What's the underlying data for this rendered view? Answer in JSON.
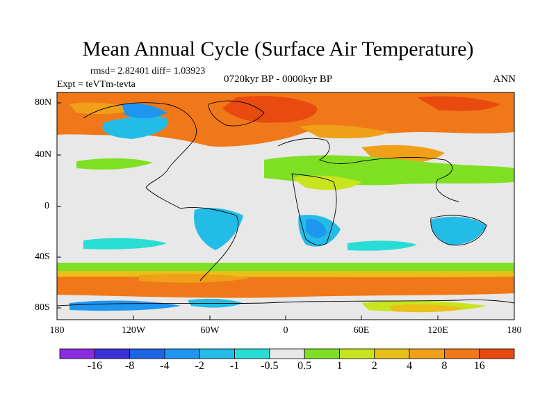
{
  "title": "Mean Annual Cycle (Surface Air Temperature)",
  "stats": "rmsd= 2.82401 diff= 1.03923",
  "experiment": "Expt = teVTm-tevta",
  "period": "0720kyr BP - 0000kyr BP",
  "season": "ANN",
  "y_ticks": [
    "80N",
    "40N",
    "0",
    "40S",
    "80S"
  ],
  "x_ticks": [
    "180",
    "120W",
    "60W",
    "0",
    "60E",
    "120E",
    "180"
  ],
  "colorbar": {
    "labels": [
      "-16",
      "-8",
      "-4",
      "-2",
      "-1",
      "-0.5",
      "0.5",
      "1",
      "2",
      "4",
      "8",
      "16"
    ],
    "colors": [
      "#8a2be2",
      "#3a32d6",
      "#1e64e6",
      "#1e96f0",
      "#22bce6",
      "#28ddd6",
      "#e8e8e8",
      "#7fe023",
      "#c8e41e",
      "#e8c019",
      "#f0a018",
      "#f07818",
      "#e84a10"
    ]
  },
  "colors": {
    "background": "#e8e8e8",
    "coast": "#000000"
  }
}
